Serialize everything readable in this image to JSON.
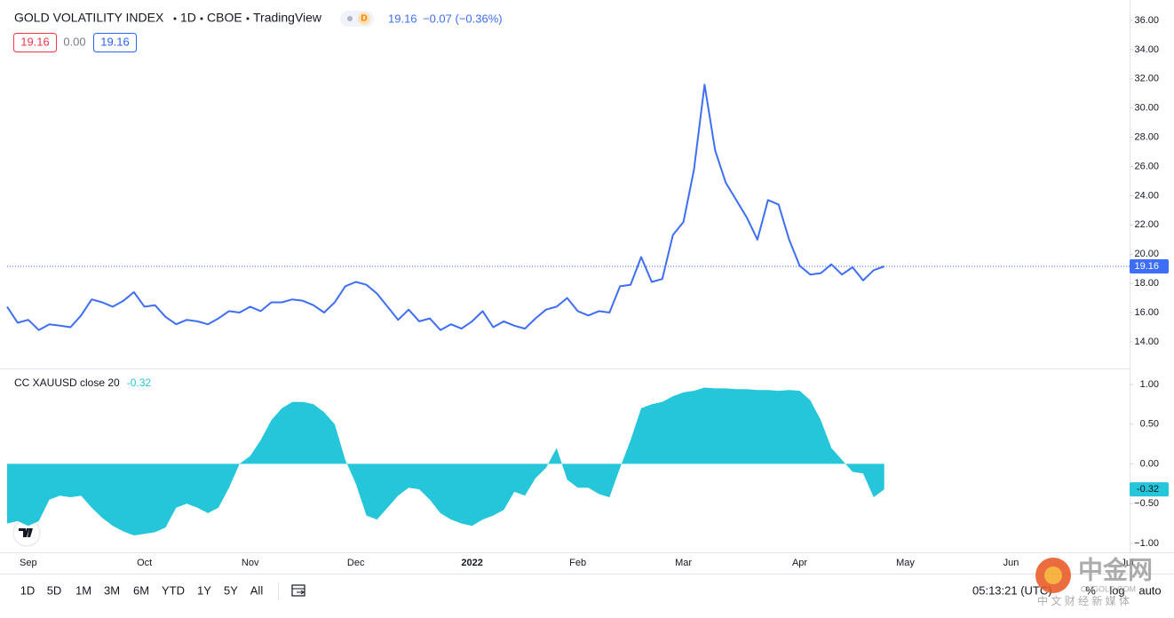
{
  "header": {
    "title": "GOLD VOLATILITY INDEX",
    "interval": "1D",
    "exchange": "CBOE",
    "source": "TradingView",
    "badge": "D",
    "change": "−0.07 (−0.36%)",
    "boxes": [
      "19.16",
      "0.00",
      "19.16"
    ]
  },
  "chart_data": [
    {
      "type": "line",
      "series": [
        {
          "name": "GOLD VOLATILITY INDEX",
          "color": "#3d6ef5",
          "values": [
            16.4,
            15.3,
            15.5,
            14.8,
            15.2,
            15.1,
            15.0,
            15.8,
            16.9,
            16.7,
            16.4,
            16.8,
            17.4,
            16.4,
            16.5,
            15.7,
            15.2,
            15.5,
            15.4,
            15.2,
            15.6,
            16.1,
            16.0,
            16.4,
            16.1,
            16.7,
            16.7,
            16.9,
            16.8,
            16.5,
            16.0,
            16.7,
            17.8,
            18.1,
            17.9,
            17.3,
            16.4,
            15.5,
            16.2,
            15.4,
            15.6,
            14.8,
            15.2,
            14.9,
            15.4,
            16.1,
            15.0,
            15.4,
            15.1,
            14.9,
            15.6,
            16.2,
            16.4,
            17.0,
            16.1,
            15.8,
            16.1,
            16.0,
            17.8,
            17.9,
            19.8,
            18.1,
            18.3,
            21.3,
            22.2,
            25.8,
            31.6,
            27.1,
            24.9,
            23.7,
            22.5,
            21.0,
            23.7,
            23.4,
            21.0,
            19.2,
            18.6,
            18.7,
            19.3,
            18.6,
            19.1,
            18.2,
            18.9,
            19.16,
            null,
            null,
            null,
            null,
            null,
            null,
            null,
            null,
            null,
            null,
            null,
            null,
            null,
            null,
            null,
            null,
            null,
            null,
            null,
            null,
            null,
            null,
            null
          ]
        }
      ],
      "ylim": [
        12.17,
        37.4
      ],
      "yticks": [
        {
          "value": 14,
          "label": "14.00"
        },
        {
          "value": 16,
          "label": "16.00"
        },
        {
          "value": 18,
          "label": "18.00"
        },
        {
          "value": 20,
          "label": "20.00"
        },
        {
          "value": 22,
          "label": "22.00"
        },
        {
          "value": 24,
          "label": "24.00"
        },
        {
          "value": 26,
          "label": "26.00"
        },
        {
          "value": 28,
          "label": "28.00"
        },
        {
          "value": 30,
          "label": "30.00"
        },
        {
          "value": 32,
          "label": "32.00"
        },
        {
          "value": 34,
          "label": "34.00"
        },
        {
          "value": 36,
          "label": "36.00"
        }
      ]
    },
    {
      "type": "area",
      "categories": [
        null,
        null,
        "Sep",
        null,
        null,
        null,
        null,
        null,
        null,
        null,
        null,
        null,
        null,
        "Oct",
        null,
        null,
        null,
        null,
        null,
        null,
        null,
        null,
        null,
        "Nov",
        null,
        null,
        null,
        null,
        null,
        null,
        null,
        null,
        null,
        "Dec",
        null,
        null,
        null,
        null,
        null,
        null,
        null,
        null,
        null,
        null,
        "2022",
        null,
        null,
        null,
        null,
        null,
        null,
        null,
        null,
        null,
        "Feb",
        null,
        null,
        null,
        null,
        null,
        null,
        null,
        null,
        null,
        "Mar",
        null,
        null,
        null,
        null,
        null,
        null,
        null,
        null,
        null,
        null,
        "Apr",
        null,
        null,
        null,
        null,
        null,
        null,
        null,
        null,
        null,
        "May",
        null,
        null,
        null,
        null,
        null,
        null,
        null,
        null,
        null,
        "Jun",
        null,
        null,
        null,
        null,
        null,
        null,
        null,
        null,
        null,
        null,
        "Jul"
      ],
      "series": [
        {
          "name": "CC XAUUSD close 20",
          "color": "#26c6da",
          "values": [
            -0.75,
            -0.72,
            -0.78,
            -0.72,
            -0.45,
            -0.4,
            -0.42,
            -0.4,
            -0.55,
            -0.68,
            -0.78,
            -0.85,
            -0.9,
            -0.88,
            -0.86,
            -0.8,
            -0.55,
            -0.5,
            -0.55,
            -0.62,
            -0.55,
            -0.3,
            0.0,
            0.1,
            0.3,
            0.55,
            0.7,
            0.78,
            0.78,
            0.75,
            0.65,
            0.5,
            0.05,
            -0.25,
            -0.65,
            -0.7,
            -0.55,
            -0.4,
            -0.3,
            -0.32,
            -0.45,
            -0.62,
            -0.7,
            -0.75,
            -0.78,
            -0.7,
            -0.65,
            -0.58,
            -0.35,
            -0.4,
            -0.18,
            -0.05,
            0.2,
            -0.2,
            -0.3,
            -0.3,
            -0.38,
            -0.42,
            -0.05,
            0.3,
            0.7,
            0.75,
            0.78,
            0.85,
            0.9,
            0.92,
            0.96,
            0.95,
            0.95,
            0.94,
            0.94,
            0.93,
            0.93,
            0.92,
            0.93,
            0.92,
            0.8,
            0.55,
            0.2,
            0.05,
            -0.1,
            -0.12,
            -0.42,
            -0.32,
            null,
            null,
            null,
            null,
            null,
            null,
            null,
            null,
            null,
            null,
            null,
            null,
            null,
            null,
            null,
            null,
            null,
            null,
            null,
            null,
            null,
            null,
            null
          ]
        }
      ],
      "ylim": [
        -1.09,
        1.2
      ],
      "yticks": [
        {
          "value": -1,
          "label": "−1.00"
        },
        {
          "value": -0.5,
          "label": "−0.50"
        },
        {
          "value": 0,
          "label": "0.00"
        },
        {
          "value": 0.5,
          "label": "0.50"
        },
        {
          "value": 1,
          "label": "1.00"
        }
      ]
    }
  ],
  "toolbar": {
    "ranges": [
      "1D",
      "5D",
      "1M",
      "3M",
      "6M",
      "YTD",
      "1Y",
      "5Y",
      "All"
    ],
    "time": "05:13:21 (UTC)",
    "options": [
      "%",
      "log",
      "auto"
    ]
  },
  "watermark": {
    "logo": "中金网",
    "domain": "CNGOLD.COM",
    "slogan": "中 文 财 经 新 媒 体"
  }
}
